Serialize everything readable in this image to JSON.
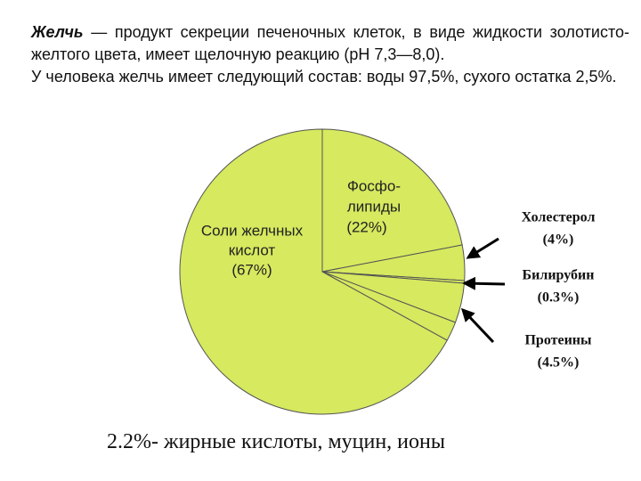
{
  "intro": {
    "lead": "Желчь",
    "text1": " — продукт секреции печеночных клеток, в виде жидкости золотисто-желтого цвета, имеет щелочную реакцию (рН 7,3—8,0).",
    "text2": "У человека желчь имеет следующий состав: воды 97,5%, сухого остатка 2,5%."
  },
  "chart_data": {
    "type": "pie",
    "color": "#d6e95f",
    "categories": [
      [
        "Фосфо-",
        "липиды"
      ],
      [
        "Холестерол"
      ],
      [
        "Билирубин"
      ],
      [
        "Протеины"
      ],
      [
        "жирные кислоты, муцин, ионы"
      ],
      [
        "Соли желчных",
        "кислот"
      ]
    ],
    "values": [
      22,
      4,
      0.3,
      4.5,
      2.2,
      67
    ],
    "value_labels": [
      "(22%)",
      "(4%)",
      "(0.3%)",
      "(4.5%)",
      "2.2%-",
      "(67%)"
    ]
  }
}
